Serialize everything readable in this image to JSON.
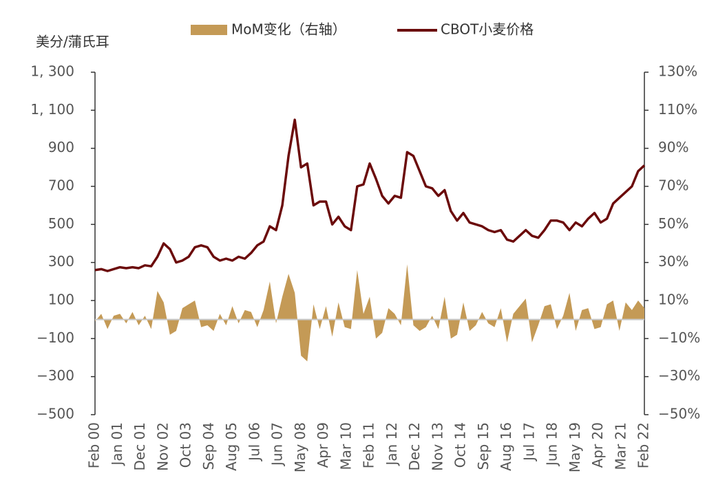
{
  "chart_data": {
    "type": "line",
    "y_axis_label": "美分/蒲氏耳",
    "xlim": [
      0,
      264
    ],
    "xticks": [
      {
        "value": 0,
        "label": "Feb 00"
      },
      {
        "value": 11,
        "label": "Jan 01"
      },
      {
        "value": 22,
        "label": "Dec 01"
      },
      {
        "value": 33,
        "label": "Nov 02"
      },
      {
        "value": 44,
        "label": "Oct 03"
      },
      {
        "value": 55,
        "label": "Sep 04"
      },
      {
        "value": 66,
        "label": "Aug 05"
      },
      {
        "value": 77,
        "label": "Jul 06"
      },
      {
        "value": 88,
        "label": "Jun 07"
      },
      {
        "value": 99,
        "label": "May 08"
      },
      {
        "value": 110,
        "label": "Apr 09"
      },
      {
        "value": 121,
        "label": "Mar 10"
      },
      {
        "value": 132,
        "label": "Feb 11"
      },
      {
        "value": 143,
        "label": "Jan 12"
      },
      {
        "value": 154,
        "label": "Dec 12"
      },
      {
        "value": 165,
        "label": "Nov 13"
      },
      {
        "value": 176,
        "label": "Oct 14"
      },
      {
        "value": 187,
        "label": "Sep 15"
      },
      {
        "value": 198,
        "label": "Aug 16"
      },
      {
        "value": 209,
        "label": "Jul 17"
      },
      {
        "value": 220,
        "label": "Jun 18"
      },
      {
        "value": 231,
        "label": "May 19"
      },
      {
        "value": 242,
        "label": "Apr 20"
      },
      {
        "value": 253,
        "label": "Mar 21"
      },
      {
        "value": 264,
        "label": "Feb 22"
      }
    ],
    "ylim": [
      -500,
      1300
    ],
    "yticks": [
      {
        "value": -500,
        "label": "−500"
      },
      {
        "value": -300,
        "label": "−300"
      },
      {
        "value": -100,
        "label": "−100"
      },
      100,
      300,
      500,
      700,
      900,
      {
        "value": 1100,
        "label": "1, 100"
      },
      {
        "value": 1300,
        "label": "1, 300"
      }
    ],
    "y2lim": [
      -50,
      130
    ],
    "y2ticks": [
      {
        "value": -50,
        "label": "−50%"
      },
      {
        "value": -30,
        "label": "−30%"
      },
      {
        "value": -10,
        "label": "−10%"
      },
      {
        "value": 10,
        "label": "10%"
      },
      {
        "value": 30,
        "label": "30%"
      },
      {
        "value": 50,
        "label": "50%"
      },
      {
        "value": 70,
        "label": "70%"
      },
      {
        "value": 90,
        "label": "90%"
      },
      {
        "value": 110,
        "label": "110%"
      },
      {
        "value": 130,
        "label": "130%"
      }
    ],
    "x": [
      0,
      3,
      6,
      9,
      12,
      15,
      18,
      21,
      24,
      27,
      30,
      33,
      36,
      39,
      42,
      45,
      48,
      51,
      54,
      57,
      60,
      63,
      66,
      69,
      72,
      75,
      78,
      81,
      84,
      87,
      90,
      93,
      96,
      99,
      102,
      105,
      108,
      111,
      114,
      117,
      120,
      123,
      126,
      129,
      132,
      135,
      138,
      141,
      144,
      147,
      150,
      153,
      156,
      159,
      162,
      165,
      168,
      171,
      174,
      177,
      180,
      183,
      186,
      189,
      192,
      195,
      198,
      201,
      204,
      207,
      210,
      213,
      216,
      219,
      222,
      225,
      228,
      231,
      234,
      237,
      240,
      243,
      246,
      249,
      252,
      255,
      258,
      261,
      264
    ],
    "series": [
      {
        "name": "MoM变化（右轴）",
        "type": "area",
        "axis": "y2",
        "color": "#c49a56",
        "values": [
          -1,
          3,
          -5,
          2,
          3,
          -2,
          4,
          -3,
          2,
          -5,
          15,
          9,
          -8,
          -6,
          6,
          8,
          10,
          -4,
          -3,
          -6,
          3,
          -3,
          7,
          -2,
          5,
          4,
          -4,
          5,
          20,
          -2,
          12,
          24,
          14,
          -19,
          -22,
          8,
          -5,
          7,
          -9,
          9,
          -4,
          -5,
          26,
          3,
          12,
          -10,
          -7,
          6,
          3,
          -3,
          29,
          -3,
          -6,
          -4,
          2,
          -5,
          12,
          -10,
          -8,
          9,
          -6,
          -3,
          4,
          -2,
          -4,
          6,
          -12,
          3,
          7,
          11,
          -12,
          -3,
          7,
          8,
          -5,
          2,
          14,
          -6,
          5,
          6,
          -5,
          -4,
          8,
          10,
          -6,
          9,
          5,
          10,
          6
        ]
      },
      {
        "name": "CBOT小麦价格",
        "type": "line",
        "color": "#6b0a0a",
        "values": [
          260,
          265,
          255,
          265,
          275,
          270,
          275,
          270,
          285,
          280,
          330,
          400,
          370,
          300,
          310,
          330,
          380,
          390,
          380,
          330,
          310,
          320,
          310,
          330,
          320,
          350,
          390,
          410,
          490,
          470,
          600,
          860,
          1050,
          800,
          820,
          600,
          620,
          620,
          500,
          540,
          490,
          470,
          700,
          710,
          820,
          740,
          650,
          610,
          650,
          640,
          880,
          860,
          780,
          700,
          690,
          650,
          680,
          570,
          520,
          560,
          510,
          500,
          490,
          470,
          460,
          470,
          420,
          410,
          440,
          470,
          440,
          430,
          470,
          520,
          520,
          510,
          470,
          510,
          490,
          530,
          560,
          510,
          530,
          610,
          640,
          670,
          700,
          780,
          810
        ]
      }
    ]
  }
}
